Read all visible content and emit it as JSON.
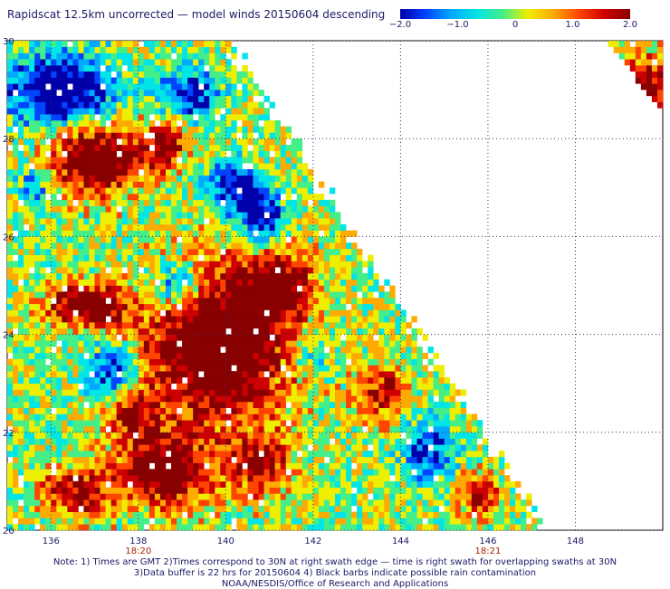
{
  "title": "Rapidscat 12.5km uncorrected — model winds 20150604 descending",
  "colorbar": {
    "colors": [
      "#0000aa",
      "#0044ff",
      "#00aaff",
      "#00e5e5",
      "#44ee88",
      "#eeee00",
      "#ffaa00",
      "#ff4400",
      "#cc0000",
      "#880000"
    ],
    "ticks": [
      {
        "label": "−2.0",
        "value": -2.0
      },
      {
        "label": "−1.0",
        "value": -1.0
      },
      {
        "label": "0",
        "value": 0
      },
      {
        "label": "1.0",
        "value": 1.0
      },
      {
        "label": "2.0",
        "value": 2.0
      }
    ],
    "range": [
      -2.0,
      2.0
    ]
  },
  "map": {
    "lon_range": [
      135,
      150
    ],
    "lat_range": [
      20,
      30
    ],
    "x_ticks": [
      "136",
      "138",
      "140",
      "142",
      "144",
      "146",
      "148"
    ],
    "y_ticks": [
      "30",
      "28",
      "26",
      "24",
      "22",
      "20"
    ],
    "time_labels": [
      {
        "label": "18:20",
        "lon": 138
      },
      {
        "label": "18:21",
        "lon": 146
      }
    ],
    "swath_edge_lon_at_20N": 147.3,
    "swath_edge_lon_at_30N": 140.0
  },
  "notes": {
    "line1": "Note: 1) Times are GMT 2)Times correspond to 30N at right swath edge — time is right swath for overlapping swaths at 30N",
    "line2": "3)Data buffer is 22 hrs for 20150604 4) Black barbs indicate possible rain contamination",
    "line3": "NOAA/NESDIS/Office of Research and Applications"
  }
}
